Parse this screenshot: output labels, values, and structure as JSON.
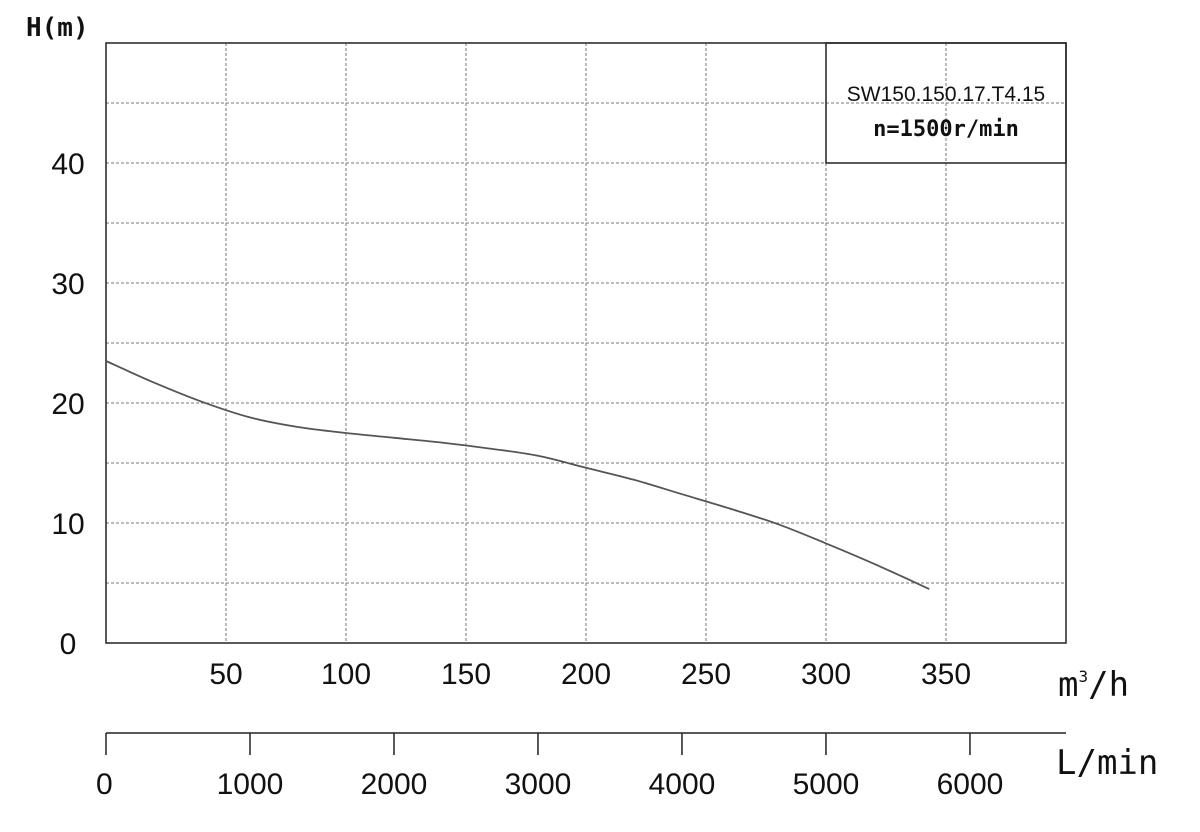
{
  "chart_data": {
    "type": "line",
    "ylabel": "H(m)",
    "xlabel": "m³/h",
    "xlabel_base": "m",
    "xlabel_sup": "3",
    "xlabel_tail": "/h",
    "x2label": "L/min",
    "xlim": [
      0,
      400
    ],
    "ylim": [
      0,
      50
    ],
    "x_ticks": [
      "50",
      "100",
      "150",
      "200",
      "250",
      "300",
      "350"
    ],
    "x_tick_values": [
      50,
      100,
      150,
      200,
      250,
      300,
      350
    ],
    "y_ticks": [
      "0",
      "10",
      "20",
      "30",
      "40"
    ],
    "y_tick_values": [
      0,
      10,
      20,
      30,
      40
    ],
    "x2_ticks": [
      "0",
      "1000",
      "2000",
      "3000",
      "4000",
      "5000",
      "6000"
    ],
    "x2_tick_values": [
      0,
      1000,
      2000,
      3000,
      4000,
      5000,
      6000
    ],
    "x2lim": [
      0,
      6667
    ],
    "grid": true,
    "grid_minor_y": [
      5,
      15,
      25,
      35,
      45
    ],
    "legend_box": {
      "model": "SW150.150.17.T4.15",
      "speed": "n=1500r/min",
      "placement": "top-right"
    },
    "series": [
      {
        "x": [
          0,
          20,
          40,
          60,
          80,
          100,
          120,
          140,
          160,
          180,
          200,
          220,
          240,
          260,
          280,
          300,
          320,
          343
        ],
        "y": [
          23.5,
          21.7,
          20.1,
          18.8,
          18.0,
          17.5,
          17.1,
          16.7,
          16.2,
          15.6,
          14.6,
          13.6,
          12.4,
          11.2,
          9.9,
          8.3,
          6.6,
          4.5
        ]
      }
    ]
  }
}
